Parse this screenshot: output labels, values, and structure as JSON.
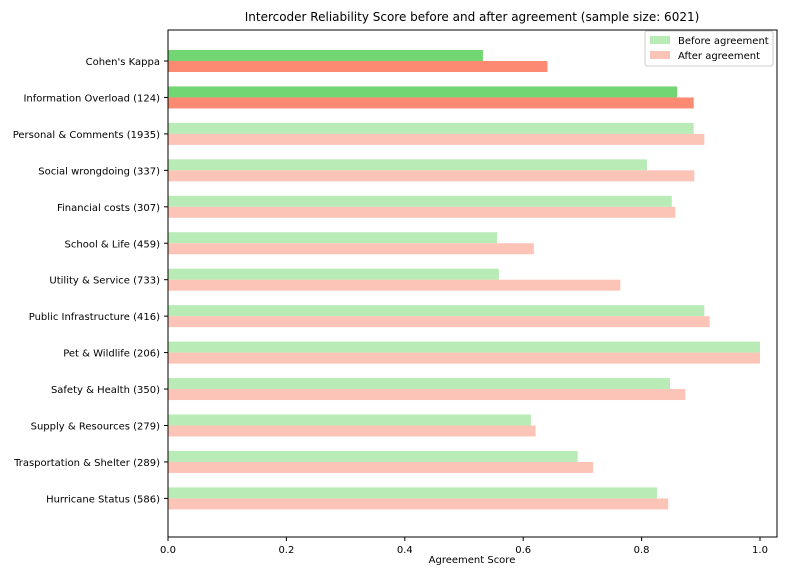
{
  "chart_data": {
    "type": "bar",
    "orientation": "horizontal",
    "title": "Intercoder Reliability Score before and after agreement (sample size: 6021)",
    "xlabel": "Agreement Score",
    "ylabel": "",
    "xlim": [
      0,
      1.03
    ],
    "xticks": [
      "0.0",
      "0.2",
      "0.4",
      "0.6",
      "0.8",
      "1.0"
    ],
    "xtick_values": [
      0,
      0.2,
      0.4,
      0.6,
      0.8,
      1.0
    ],
    "grid": false,
    "legend_position": "top-right",
    "categories": [
      "Cohen's Kappa",
      "Information Overload  (124)",
      "Personal & Comments  (1935)",
      "Social wrongdoing  (337)",
      "Financial costs  (307)",
      "School & Life  (459)",
      "Utility & Service  (733)",
      "Public Infrastructure  (416)",
      "Pet & Wildlife  (206)",
      "Safety & Health  (350)",
      "Supply & Resources  (279)",
      "Trasportation & Shelter  (289)",
      "Hurricane Status  (586)"
    ],
    "series": [
      {
        "name": "Before agreement",
        "color": "#b8ebb5",
        "values": [
          0.532,
          0.86,
          0.888,
          0.809,
          0.851,
          0.556,
          0.559,
          0.906,
          1.0,
          0.848,
          0.613,
          0.692,
          0.826
        ]
      },
      {
        "name": "After agreement",
        "color": "#fcc4b7",
        "values": [
          0.641,
          0.888,
          0.906,
          0.889,
          0.857,
          0.618,
          0.764,
          0.915,
          1.0,
          0.874,
          0.621,
          0.718,
          0.845
        ]
      }
    ],
    "highlight_colors": {
      "before": "#72d672",
      "after": "#fc8a72"
    },
    "highlighted_categories": [
      "Cohen's Kappa",
      "Information Overload  (124)"
    ]
  }
}
